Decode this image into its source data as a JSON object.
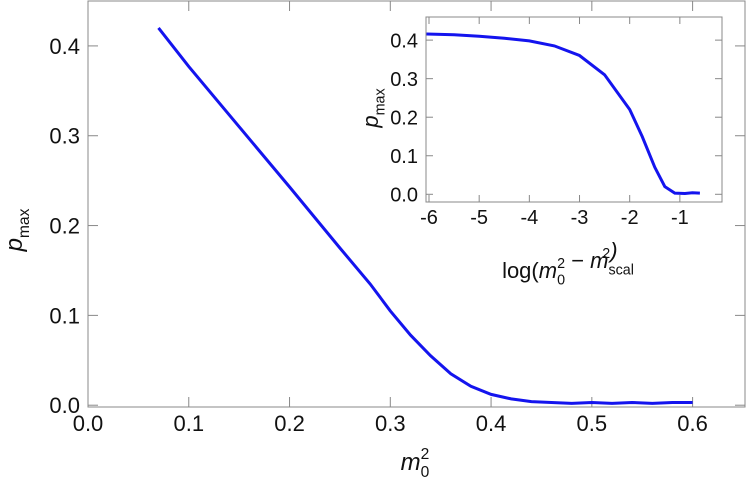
{
  "chart_data": [
    {
      "type": "line",
      "x_label": [
        {
          "text": "m",
          "sub": "0",
          "sup": "2"
        }
      ],
      "y_label": [
        {
          "text": "p",
          "sub": "max"
        }
      ],
      "x": [
        0.07,
        0.1,
        0.15,
        0.2,
        0.25,
        0.28,
        0.3,
        0.32,
        0.34,
        0.36,
        0.38,
        0.4,
        0.42,
        0.44,
        0.46,
        0.48,
        0.5,
        0.52,
        0.54,
        0.56,
        0.58,
        0.6
      ],
      "values": [
        0.42,
        0.377,
        0.31,
        0.243,
        0.175,
        0.135,
        0.105,
        0.078,
        0.055,
        0.035,
        0.021,
        0.012,
        0.007,
        0.004,
        0.003,
        0.002,
        0.003,
        0.002,
        0.003,
        0.002,
        0.003,
        0.003
      ],
      "color": "#1414ee",
      "xlim": [
        0,
        0.652
      ],
      "ylim": [
        -0.002,
        0.45
      ],
      "xticks": [
        {
          "value": 0,
          "label": "0.0"
        },
        0.1,
        0.2,
        0.3,
        0.4,
        0.5,
        0.6
      ],
      "yticks": [
        {
          "value": 0,
          "label": "0.0"
        },
        0.1,
        0.2,
        0.3,
        0.4
      ]
    },
    {
      "type": "line",
      "x_label": [
        {
          "text": "log("
        },
        {
          "text": "m",
          "sub": "0",
          "sup": "2"
        },
        {
          "text": " − "
        },
        {
          "text": "m",
          "sub": "scal",
          "sup": "2"
        },
        {
          "text": ")"
        }
      ],
      "y_label": [
        {
          "text": "p",
          "sub": "max"
        }
      ],
      "x": [
        -6.05,
        -5.5,
        -5,
        -4.5,
        -4,
        -3.5,
        -3,
        -2.5,
        -2,
        -1.75,
        -1.5,
        -1.3,
        -1.1,
        -0.9,
        -0.75,
        -0.6
      ],
      "values": [
        0.416,
        0.414,
        0.41,
        0.405,
        0.398,
        0.385,
        0.36,
        0.31,
        0.22,
        0.15,
        0.07,
        0.02,
        0.003,
        0.002,
        0.004,
        0.003
      ],
      "color": "#1414ee",
      "xlim": [
        -6.06,
        -0.16
      ],
      "ylim": [
        -0.02,
        0.46
      ],
      "xticks": [
        -6,
        -5,
        -4,
        -3,
        -2,
        -1
      ],
      "yticks": [
        {
          "value": 0,
          "label": "0.0"
        },
        0.1,
        0.2,
        0.3,
        0.4
      ]
    }
  ]
}
